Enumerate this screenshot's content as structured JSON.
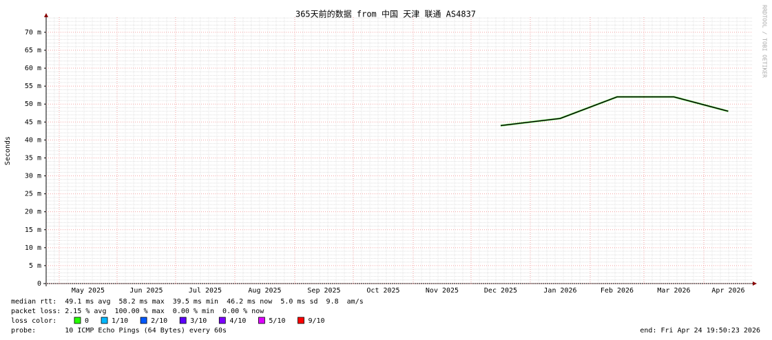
{
  "chart_data": {
    "type": "line",
    "title": "365天前的数据 from 中国 天津 联通 AS4837",
    "y_label": "Seconds",
    "watermark": "RRDTOOL / TOBI OETIKER",
    "categories": [
      null,
      "May 2025",
      "Jun 2025",
      "Jul 2025",
      "Aug 2025",
      "Sep 2025",
      "Oct 2025",
      "Nov 2025",
      "Dec 2025",
      "Jan 2026",
      "Feb 2026",
      "Mar 2026",
      "Apr 2026"
    ],
    "series": [
      {
        "name": "median rtt",
        "color": "#000000",
        "values": [
          null,
          null,
          null,
          null,
          null,
          null,
          null,
          null,
          0.044,
          0.046,
          0.052,
          0.052,
          0.048
        ]
      }
    ],
    "ylim": [
      0,
      0.0742
    ],
    "yticks": [
      0,
      {
        "value": 0.005,
        "label": "5 m"
      },
      {
        "value": 0.01,
        "label": "10 m"
      },
      {
        "value": 0.015,
        "label": "15 m"
      },
      {
        "value": 0.02,
        "label": "20 m"
      },
      {
        "value": 0.025,
        "label": "25 m"
      },
      {
        "value": 0.03,
        "label": "30 m"
      },
      {
        "value": 0.035,
        "label": "35 m"
      },
      {
        "value": 0.04,
        "label": "40 m"
      },
      {
        "value": 0.045,
        "label": "45 m"
      },
      {
        "value": 0.05,
        "label": "50 m"
      },
      {
        "value": 0.055,
        "label": "55 m"
      },
      {
        "value": 0.06,
        "label": "60 m"
      },
      {
        "value": 0.065,
        "label": "65 m"
      },
      {
        "value": 0.07,
        "label": "70 m"
      }
    ],
    "grid": true,
    "stats": [
      "median rtt:  49.1 ms avg  58.2 ms max  39.5 ms min  46.2 ms now  5.0 ms sd  9.8  am/s",
      "packet loss: 2.15 % avg  100.00 % max  0.00 % min  0.00 % now"
    ],
    "loss_color_label": "loss color:",
    "loss_colors": [
      {
        "label": "0",
        "color": "#26ff00"
      },
      {
        "label": "1/10",
        "color": "#00b8ff"
      },
      {
        "label": "2/10",
        "color": "#0059ff"
      },
      {
        "label": "3/10",
        "color": "#5e00ff"
      },
      {
        "label": "4/10",
        "color": "#7e00ff"
      },
      {
        "label": "5/10",
        "color": "#dd00ff"
      },
      {
        "label": "9/10",
        "color": "#ff0000"
      }
    ],
    "probe": "probe:       10 ICMP Echo Pings (64 Bytes) every 60s",
    "end": "end: Fri Apr 24 19:50:23 2026"
  }
}
